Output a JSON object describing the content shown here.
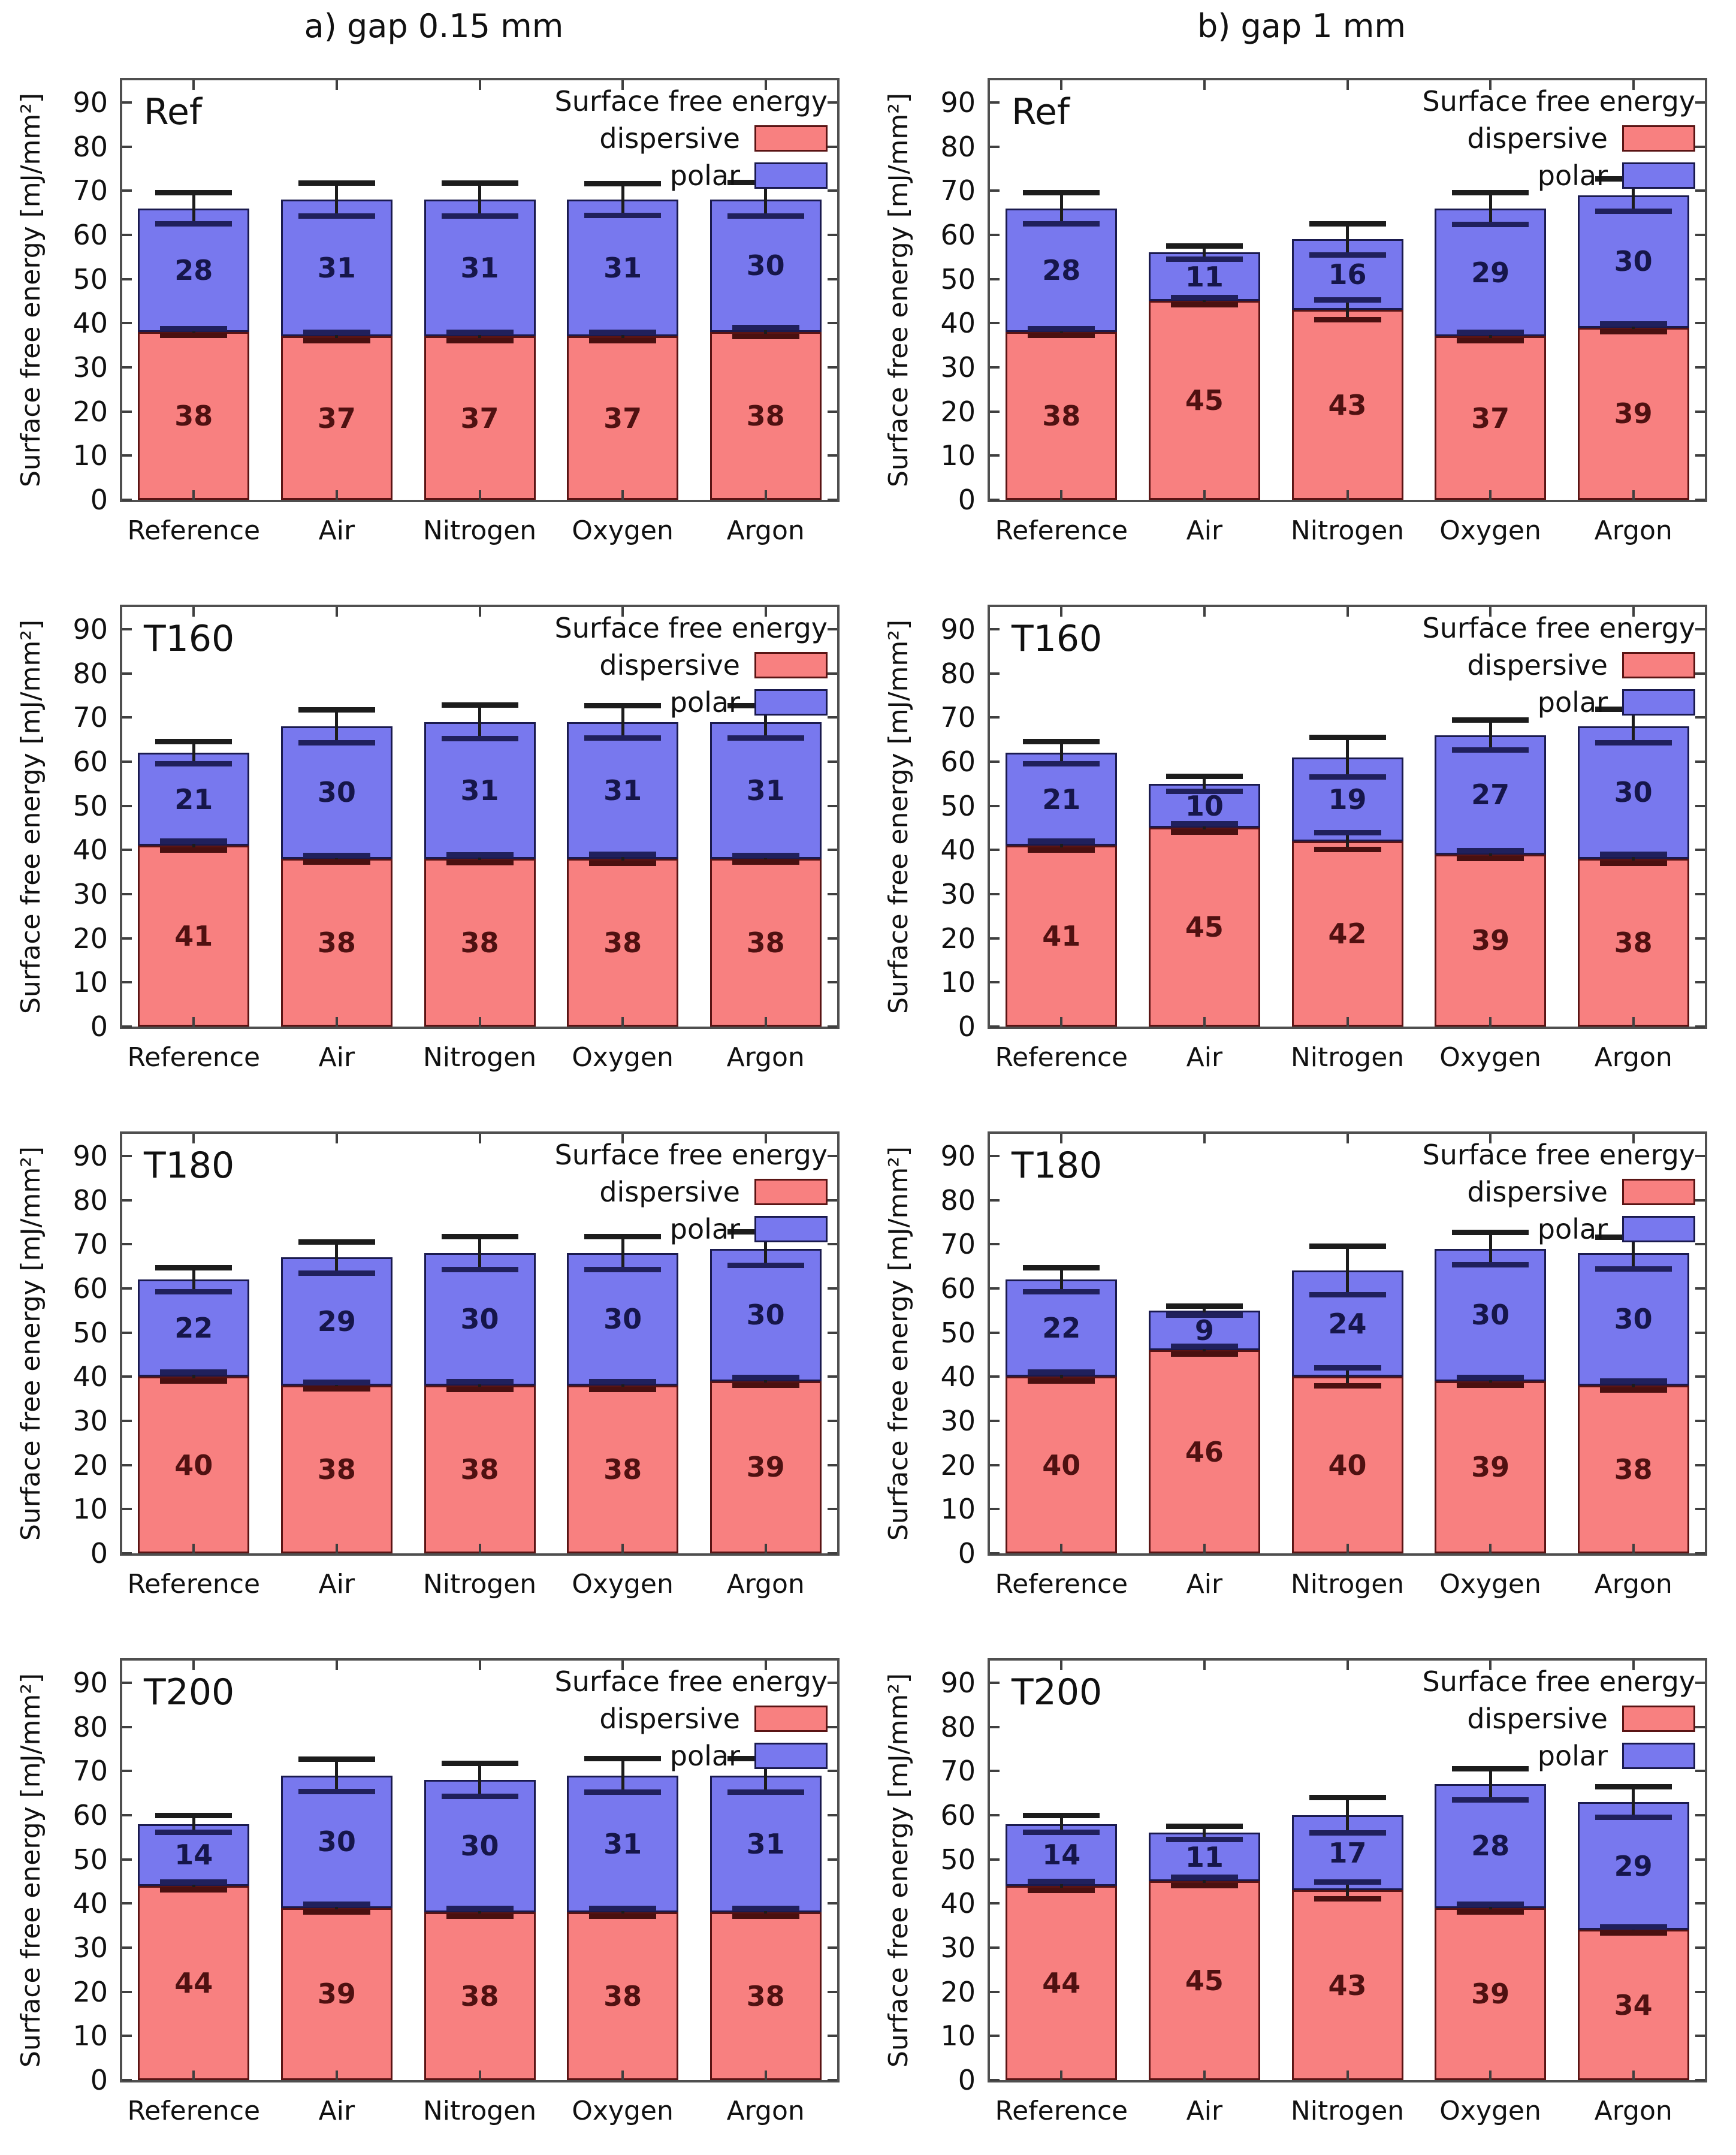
{
  "columns": [
    {
      "title": "a) gap 0.15 mm"
    },
    {
      "title": "b) gap 1 mm"
    }
  ],
  "axis": {
    "ylabel": "Surface free energy [mJ/mm²]",
    "yticks": [
      0,
      10,
      20,
      30,
      40,
      50,
      60,
      70,
      80,
      90
    ],
    "ymax": 95
  },
  "legend": {
    "title": "Surface free energy",
    "entries": [
      {
        "label": "dispersive",
        "color": "#f88080"
      },
      {
        "label": "polar",
        "color": "#7878ee"
      }
    ]
  },
  "categories": [
    "Reference",
    "Air",
    "Nitrogen",
    "Oxygen",
    "Argon"
  ],
  "colors": {
    "dispersive_fill": "#f88080",
    "dispersive_border": "#5a1414",
    "dispersive_text": "#4f1111",
    "polar_fill": "#7878ee",
    "polar_border": "#1a1a4e",
    "polar_text": "#16164a",
    "frame": "#4f4f4f",
    "error": "#1c1c1c",
    "cap_top_boundary": "#20205c",
    "cap_bottom_boundary": "#4a1010"
  },
  "chart_data": [
    {
      "type": "bar",
      "stacked": true,
      "panel": "a",
      "row_label": "Ref",
      "title": "a) gap 0.15 mm",
      "ylabel": "Surface free energy [mJ/mm²]",
      "ylim": [
        0,
        95
      ],
      "categories": [
        "Reference",
        "Air",
        "Nitrogen",
        "Oxygen",
        "Argon"
      ],
      "series": [
        {
          "name": "dispersive",
          "values": [
            38,
            37,
            37,
            37,
            38
          ]
        },
        {
          "name": "polar",
          "values": [
            28,
            31,
            31,
            31,
            30
          ]
        }
      ],
      "err_total": [
        3.5,
        3.7,
        3.7,
        3.6,
        3.8
      ],
      "err_dispersive": [
        0.8,
        1,
        1,
        1,
        1
      ]
    },
    {
      "type": "bar",
      "stacked": true,
      "panel": "b",
      "row_label": "Ref",
      "title": "b) gap 1 mm",
      "ylabel": "Surface free energy [mJ/mm²]",
      "ylim": [
        0,
        95
      ],
      "categories": [
        "Reference",
        "Air",
        "Nitrogen",
        "Oxygen",
        "Argon"
      ],
      "series": [
        {
          "name": "dispersive",
          "values": [
            38,
            45,
            43,
            37,
            39
          ]
        },
        {
          "name": "polar",
          "values": [
            28,
            11,
            16,
            29,
            30
          ]
        }
      ],
      "err_total": [
        3.5,
        1.5,
        3.5,
        3.6,
        3.7
      ],
      "err_dispersive": [
        0.8,
        0.8,
        2.2,
        0.9,
        0.9
      ]
    },
    {
      "type": "bar",
      "stacked": true,
      "panel": "a",
      "row_label": "T160",
      "title": "a) gap 0.15 mm",
      "ylabel": "Surface free energy [mJ/mm²]",
      "ylim": [
        0,
        95
      ],
      "categories": [
        "Reference",
        "Air",
        "Nitrogen",
        "Oxygen",
        "Argon"
      ],
      "series": [
        {
          "name": "dispersive",
          "values": [
            41,
            38,
            38,
            38,
            38
          ]
        },
        {
          "name": "polar",
          "values": [
            21,
            30,
            31,
            31,
            31
          ]
        }
      ],
      "err_total": [
        2.5,
        3.7,
        3.8,
        3.7,
        3.7
      ],
      "err_dispersive": [
        1,
        0.8,
        0.9,
        1,
        0.8
      ]
    },
    {
      "type": "bar",
      "stacked": true,
      "panel": "b",
      "row_label": "T160",
      "title": "b) gap 1 mm",
      "ylabel": "Surface free energy [mJ/mm²]",
      "ylim": [
        0,
        95
      ],
      "categories": [
        "Reference",
        "Air",
        "Nitrogen",
        "Oxygen",
        "Argon"
      ],
      "series": [
        {
          "name": "dispersive",
          "values": [
            41,
            45,
            42,
            39,
            38
          ]
        },
        {
          "name": "polar",
          "values": [
            21,
            10,
            19,
            27,
            30
          ]
        }
      ],
      "err_total": [
        2.5,
        1.7,
        4.5,
        3.4,
        3.8
      ],
      "err_dispersive": [
        1,
        0.9,
        1.9,
        0.9,
        1
      ]
    },
    {
      "type": "bar",
      "stacked": true,
      "panel": "a",
      "row_label": "T180",
      "title": "a) gap 0.15 mm",
      "ylabel": "Surface free energy [mJ/mm²]",
      "ylim": [
        0,
        95
      ],
      "categories": [
        "Reference",
        "Air",
        "Nitrogen",
        "Oxygen",
        "Argon"
      ],
      "series": [
        {
          "name": "dispersive",
          "values": [
            40,
            38,
            38,
            38,
            39
          ]
        },
        {
          "name": "polar",
          "values": [
            22,
            29,
            30,
            30,
            30
          ]
        }
      ],
      "err_total": [
        2.7,
        3.5,
        3.7,
        3.7,
        3.8
      ],
      "err_dispersive": [
        1,
        0.8,
        0.9,
        0.9,
        0.9
      ]
    },
    {
      "type": "bar",
      "stacked": true,
      "panel": "b",
      "row_label": "T180",
      "title": "b) gap 1 mm",
      "ylabel": "Surface free energy [mJ/mm²]",
      "ylim": [
        0,
        95
      ],
      "categories": [
        "Reference",
        "Air",
        "Nitrogen",
        "Oxygen",
        "Argon"
      ],
      "series": [
        {
          "name": "dispersive",
          "values": [
            40,
            46,
            40,
            39,
            38
          ]
        },
        {
          "name": "polar",
          "values": [
            22,
            9,
            24,
            30,
            30
          ]
        }
      ],
      "err_total": [
        2.7,
        1.0,
        5.5,
        3.7,
        3.6
      ],
      "err_dispersive": [
        1,
        0.9,
        2.0,
        0.9,
        1
      ]
    },
    {
      "type": "bar",
      "stacked": true,
      "panel": "a",
      "row_label": "T200",
      "title": "a) gap 0.15 mm",
      "ylabel": "Surface free energy [mJ/mm²]",
      "ylim": [
        0,
        95
      ],
      "categories": [
        "Reference",
        "Air",
        "Nitrogen",
        "Oxygen",
        "Argon"
      ],
      "series": [
        {
          "name": "dispersive",
          "values": [
            44,
            39,
            38,
            38,
            38
          ]
        },
        {
          "name": "polar",
          "values": [
            14,
            30,
            30,
            31,
            31
          ]
        }
      ],
      "err_total": [
        1.9,
        3.7,
        3.7,
        3.8,
        3.8
      ],
      "err_dispersive": [
        0.9,
        0.9,
        0.9,
        0.9,
        0.9
      ]
    },
    {
      "type": "bar",
      "stacked": true,
      "panel": "b",
      "row_label": "T200",
      "title": "b) gap 1 mm",
      "ylabel": "Surface free energy [mJ/mm²]",
      "ylim": [
        0,
        95
      ],
      "categories": [
        "Reference",
        "Air",
        "Nitrogen",
        "Oxygen",
        "Argon"
      ],
      "series": [
        {
          "name": "dispersive",
          "values": [
            44,
            45,
            43,
            39,
            34
          ]
        },
        {
          "name": "polar",
          "values": [
            14,
            11,
            17,
            28,
            29
          ]
        }
      ],
      "err_total": [
        1.9,
        1.5,
        4.0,
        3.5,
        3.5
      ],
      "err_dispersive": [
        1,
        0.9,
        1.9,
        0.9,
        0.7
      ]
    }
  ]
}
